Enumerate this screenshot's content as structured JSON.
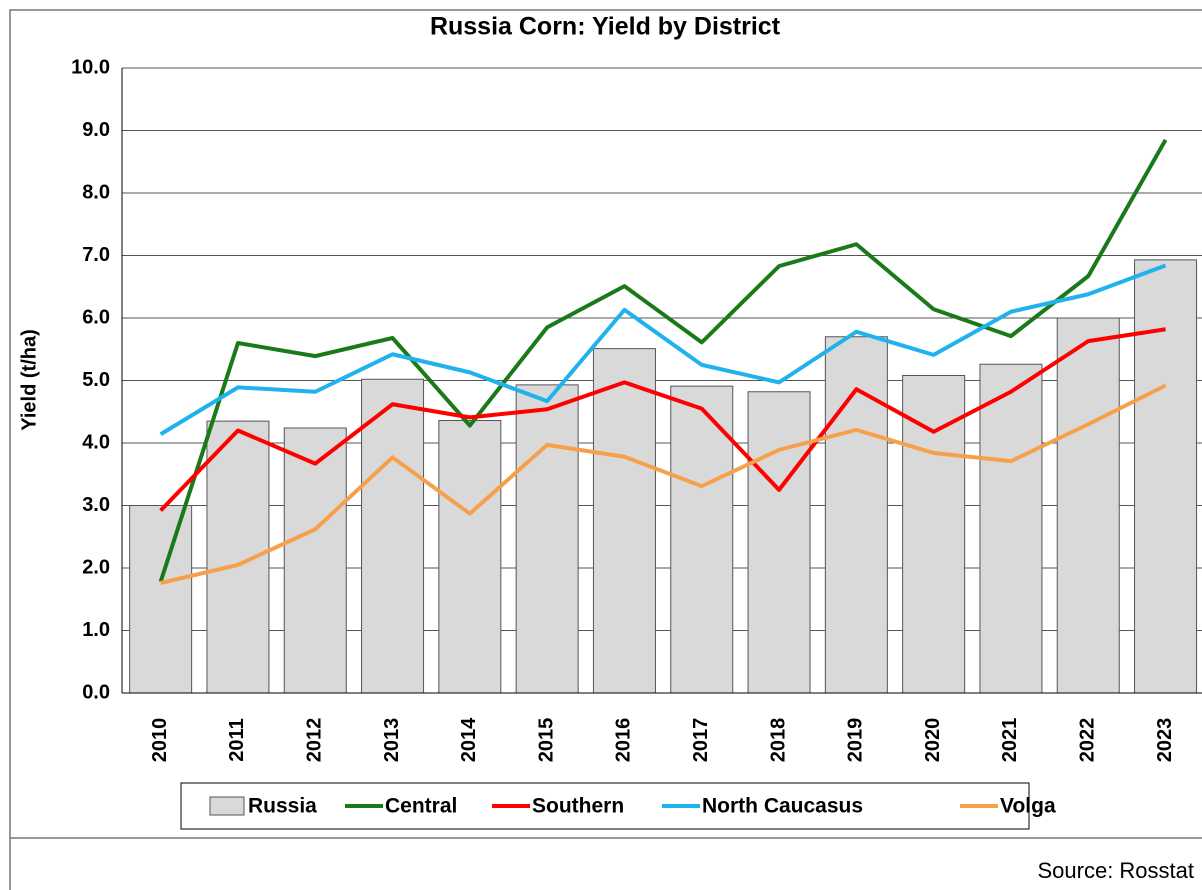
{
  "chart_data": {
    "type": "combo",
    "title": "Russia Corn: Yield by District",
    "y_label": "Yield (t/ha)",
    "source": "Source: Rosstat",
    "categories": [
      "2010",
      "2011",
      "2012",
      "2013",
      "2014",
      "2015",
      "2016",
      "2017",
      "2018",
      "2019",
      "2020",
      "2021",
      "2022",
      "2023"
    ],
    "ylim": [
      0,
      10
    ],
    "yticks": [
      {
        "value": 0,
        "label": "0.0"
      },
      {
        "value": 1,
        "label": "1.0"
      },
      {
        "value": 2,
        "label": "2.0"
      },
      {
        "value": 3,
        "label": "3.0"
      },
      {
        "value": 4,
        "label": "4.0"
      },
      {
        "value": 5,
        "label": "5.0"
      },
      {
        "value": 6,
        "label": "6.0"
      },
      {
        "value": 7,
        "label": "7.0"
      },
      {
        "value": 8,
        "label": "8.0"
      },
      {
        "value": 9,
        "label": "9.0"
      },
      {
        "value": 10,
        "label": "10.0"
      }
    ],
    "grid": true,
    "series": [
      {
        "name": "Russia",
        "type": "bar",
        "color": "#d9d9d9",
        "values": [
          3.0,
          4.35,
          4.24,
          5.02,
          4.36,
          4.93,
          5.51,
          4.91,
          4.82,
          5.7,
          5.08,
          5.26,
          6.0,
          6.93
        ]
      },
      {
        "name": "Central",
        "type": "line",
        "color": "#1a7a1a",
        "values": [
          1.78,
          5.6,
          5.39,
          5.68,
          4.28,
          5.85,
          6.51,
          5.61,
          6.83,
          7.18,
          6.14,
          5.71,
          6.67,
          8.85
        ]
      },
      {
        "name": "Southern",
        "type": "line",
        "color": "#ff0000",
        "values": [
          2.92,
          4.2,
          3.67,
          4.62,
          4.41,
          4.54,
          4.97,
          4.55,
          3.25,
          4.86,
          4.18,
          4.82,
          5.63,
          5.82
        ]
      },
      {
        "name": "North Caucasus",
        "type": "line",
        "color": "#1fb2ec",
        "values": [
          4.14,
          4.89,
          4.82,
          5.42,
          5.13,
          4.67,
          6.13,
          5.25,
          4.97,
          5.78,
          5.41,
          6.1,
          6.38,
          6.84
        ]
      },
      {
        "name": "Volga",
        "type": "line",
        "color": "#f7a04c",
        "values": [
          1.76,
          2.05,
          2.62,
          3.77,
          2.87,
          3.97,
          3.78,
          3.31,
          3.89,
          4.21,
          3.84,
          3.71,
          4.3,
          4.92
        ]
      }
    ]
  }
}
